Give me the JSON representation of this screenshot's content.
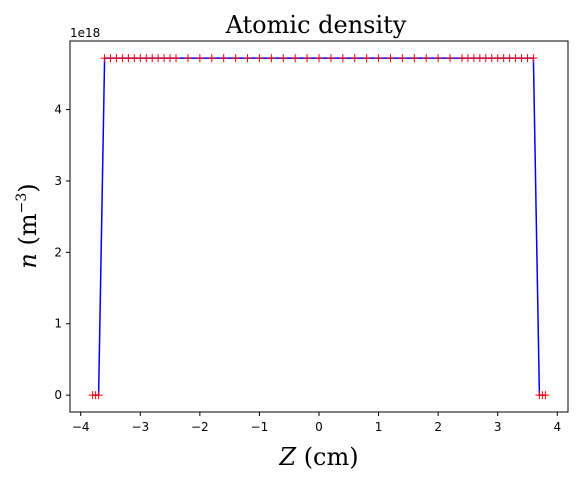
{
  "chart_data": {
    "type": "line",
    "title": "Atomic density",
    "xlabel": "Z (cm)",
    "ylabel": "n (m⁻³)",
    "y_offset_label": "1e18",
    "xlim": [
      -4.18,
      4.18
    ],
    "ylim": [
      -0.236,
      4.96
    ],
    "x_ticks": [
      -4,
      -3,
      -2,
      -1,
      0,
      1,
      2,
      3,
      4
    ],
    "x_tick_labels": [
      "−4",
      "−3",
      "−2",
      "−1",
      "0",
      "1",
      "2",
      "3",
      "4"
    ],
    "y_ticks": [
      0,
      1,
      2,
      3,
      4
    ],
    "y_tick_labels": [
      "0",
      "1",
      "2",
      "3",
      "4"
    ],
    "grid": false,
    "series": [
      {
        "line_color": "#0000ff",
        "marker_color": "#ff0000",
        "marker": "+",
        "x": [
          -3.8,
          -3.75,
          -3.7,
          -3.6,
          -3.5,
          -3.4,
          -3.3,
          -3.2,
          -3.1,
          -3.0,
          -2.9,
          -2.8,
          -2.7,
          -2.6,
          -2.5,
          -2.4,
          -2.2,
          -2.0,
          -1.8,
          -1.6,
          -1.4,
          -1.2,
          -1.0,
          -0.8,
          -0.6,
          -0.4,
          -0.2,
          0.0,
          0.2,
          0.4,
          0.6,
          0.8,
          1.0,
          1.2,
          1.4,
          1.6,
          1.8,
          2.0,
          2.2,
          2.4,
          2.5,
          2.6,
          2.7,
          2.8,
          2.9,
          3.0,
          3.1,
          3.2,
          3.3,
          3.4,
          3.5,
          3.6,
          3.7,
          3.75,
          3.8
        ],
        "y": [
          0,
          0,
          0,
          4.72,
          4.72,
          4.72,
          4.72,
          4.72,
          4.72,
          4.72,
          4.72,
          4.72,
          4.72,
          4.72,
          4.72,
          4.72,
          4.72,
          4.72,
          4.72,
          4.72,
          4.72,
          4.72,
          4.72,
          4.72,
          4.72,
          4.72,
          4.72,
          4.72,
          4.72,
          4.72,
          4.72,
          4.72,
          4.72,
          4.72,
          4.72,
          4.72,
          4.72,
          4.72,
          4.72,
          4.72,
          4.72,
          4.72,
          4.72,
          4.72,
          4.72,
          4.72,
          4.72,
          4.72,
          4.72,
          4.72,
          4.72,
          4.72,
          0,
          0,
          0
        ]
      }
    ]
  }
}
